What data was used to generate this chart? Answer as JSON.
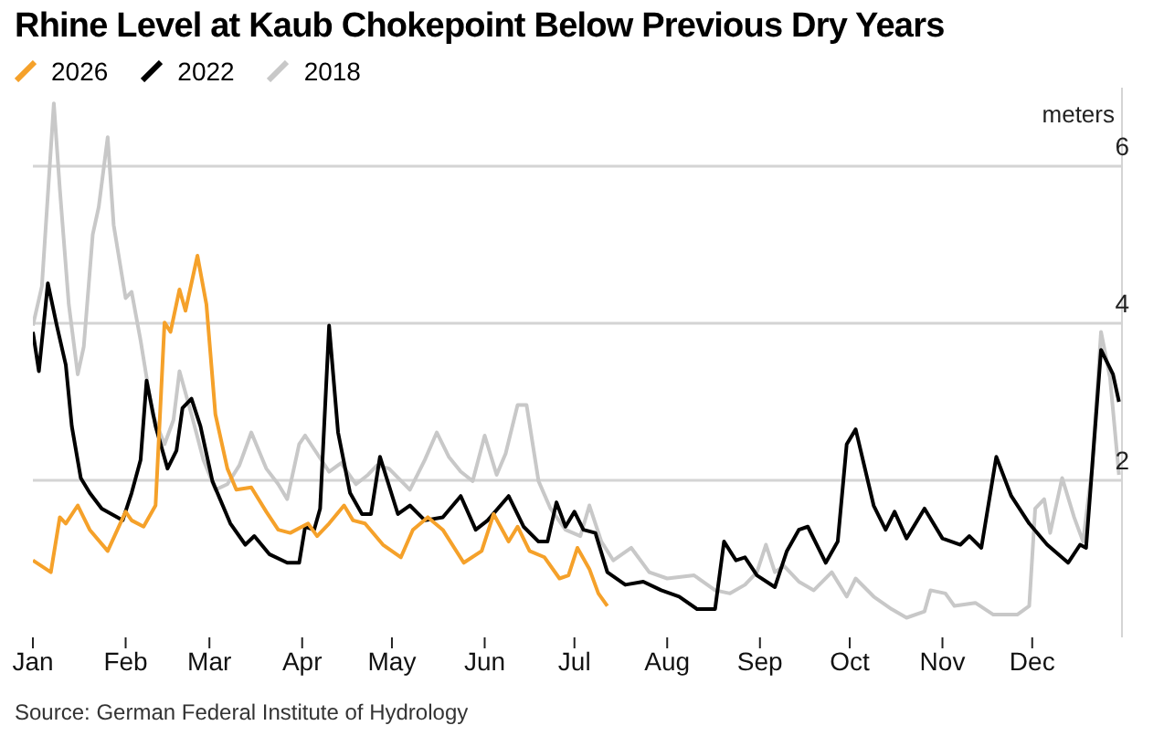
{
  "chart_data": {
    "type": "line",
    "title": "Rhine Level at Kaub Chokepoint Below Previous Dry Years",
    "ylabel": "meters",
    "annotations": [
      "Source: German Federal Institute of Hydrology"
    ],
    "xlim": [
      "--01-01",
      "--12-31"
    ],
    "xticks": [
      {
        "value": "--01-01",
        "label": "Jan"
      },
      {
        "value": "--02-01",
        "label": "Feb"
      },
      {
        "value": "--03-01",
        "label": "Mar"
      },
      {
        "value": "--04-01",
        "label": "Apr"
      },
      {
        "value": "--05-01",
        "label": "May"
      },
      {
        "value": "--06-01",
        "label": "Jun"
      },
      {
        "value": "--07-01",
        "label": "Jul"
      },
      {
        "value": "--08-01",
        "label": "Aug"
      },
      {
        "value": "--09-01",
        "label": "Sep"
      },
      {
        "value": "--10-01",
        "label": "Oct"
      },
      {
        "value": "--11-01",
        "label": "Nov"
      },
      {
        "value": "--12-01",
        "label": "Dec"
      }
    ],
    "ylim": [
      0,
      7
    ],
    "yticks": [
      2,
      4,
      6
    ],
    "grid": "y",
    "legend": "top left",
    "marker": "none",
    "line_style": "solid",
    "series": [
      {
        "name": "2018",
        "color": "#c8c8c8",
        "x": [
          "--01-01",
          "--01-04",
          "--01-08",
          "--01-10",
          "--01-13",
          "--01-16",
          "--01-18",
          "--01-21",
          "--01-23",
          "--01-26",
          "--01-28",
          "--02-01",
          "--02-03",
          "--02-06",
          "--02-10",
          "--02-14",
          "--02-17",
          "--02-19",
          "--02-23",
          "--02-27",
          "--03-03",
          "--03-07",
          "--03-11",
          "--03-15",
          "--03-20",
          "--03-24",
          "--03-27",
          "--03-31",
          "--04-02",
          "--04-06",
          "--04-10",
          "--04-14",
          "--04-19",
          "--04-23",
          "--04-26",
          "--04-30",
          "--05-07",
          "--05-12",
          "--05-16",
          "--05-20",
          "--05-24",
          "--05-28",
          "--06-01",
          "--06-05",
          "--06-08",
          "--06-12",
          "--06-15",
          "--06-19",
          "--06-23",
          "--06-28",
          "--07-03",
          "--07-06",
          "--07-10",
          "--07-14",
          "--07-20",
          "--07-26",
          "--08-01",
          "--08-10",
          "--08-17",
          "--08-22",
          "--08-27",
          "--08-31",
          "--09-03",
          "--09-06",
          "--09-09",
          "--09-14",
          "--09-19",
          "--09-25",
          "--09-30",
          "--10-03",
          "--10-09",
          "--10-15",
          "--10-20",
          "--10-26",
          "--10-28",
          "--11-02",
          "--11-05",
          "--11-12",
          "--11-18",
          "--11-26",
          "--11-30",
          "--12-02",
          "--12-05",
          "--12-07",
          "--12-11",
          "--12-15",
          "--12-18",
          "--12-21",
          "--12-24",
          "--12-27",
          "--12-30"
        ],
        "values": [
          3.97,
          4.47,
          6.8,
          5.71,
          4.24,
          3.35,
          3.7,
          5.13,
          5.48,
          6.37,
          5.25,
          4.32,
          4.4,
          3.78,
          2.84,
          2.46,
          2.77,
          3.39,
          2.84,
          2.26,
          1.88,
          1.95,
          2.19,
          2.61,
          2.15,
          1.95,
          1.76,
          2.46,
          2.57,
          2.34,
          2.11,
          2.22,
          1.95,
          2.07,
          2.19,
          2.15,
          1.88,
          2.26,
          2.61,
          2.3,
          2.11,
          1.99,
          2.57,
          2.07,
          2.34,
          2.96,
          2.96,
          1.99,
          1.64,
          1.37,
          1.29,
          1.68,
          1.22,
          0.98,
          1.14,
          0.83,
          0.75,
          0.79,
          0.6,
          0.56,
          0.67,
          0.83,
          1.18,
          0.83,
          0.91,
          0.71,
          0.6,
          0.83,
          0.52,
          0.75,
          0.52,
          0.36,
          0.25,
          0.33,
          0.6,
          0.56,
          0.4,
          0.44,
          0.29,
          0.29,
          0.4,
          1.64,
          1.76,
          1.33,
          2.03,
          1.53,
          1.22,
          2.15,
          3.89,
          3.31,
          2.07
        ]
      },
      {
        "name": "2022",
        "color": "#000000",
        "x": [
          "--01-01",
          "--01-03",
          "--01-06",
          "--01-09",
          "--01-12",
          "--01-14",
          "--01-17",
          "--01-20",
          "--01-24",
          "--01-31",
          "--02-03",
          "--02-06",
          "--02-08",
          "--02-11",
          "--02-15",
          "--02-18",
          "--02-20",
          "--02-23",
          "--02-26",
          "--03-02",
          "--03-08",
          "--03-13",
          "--03-16",
          "--03-21",
          "--03-27",
          "--03-31",
          "--04-02",
          "--04-05",
          "--04-07",
          "--04-10",
          "--04-13",
          "--04-17",
          "--04-21",
          "--04-24",
          "--04-27",
          "--05-03",
          "--05-07",
          "--05-12",
          "--05-18",
          "--05-24",
          "--05-29",
          "--06-02",
          "--06-09",
          "--06-14",
          "--06-19",
          "--06-22",
          "--06-25",
          "--06-28",
          "--07-01",
          "--07-04",
          "--07-08",
          "--07-12",
          "--07-18",
          "--07-24",
          "--07-30",
          "--08-05",
          "--08-11",
          "--08-17",
          "--08-20",
          "--08-24",
          "--08-27",
          "--08-31",
          "--09-06",
          "--09-10",
          "--09-14",
          "--09-17",
          "--09-23",
          "--09-27",
          "--09-30",
          "--10-03",
          "--10-09",
          "--10-13",
          "--10-16",
          "--10-20",
          "--10-26",
          "--11-01",
          "--11-07",
          "--11-10",
          "--11-14",
          "--11-19",
          "--11-24",
          "--11-30",
          "--12-06",
          "--12-13",
          "--12-17",
          "--12-19",
          "--12-24",
          "--12-28",
          "--12-30"
        ],
        "values": [
          3.89,
          3.39,
          4.51,
          3.97,
          3.47,
          2.69,
          2.03,
          1.84,
          1.64,
          1.49,
          1.84,
          2.26,
          3.27,
          2.69,
          2.15,
          2.38,
          2.92,
          3.04,
          2.69,
          1.99,
          1.45,
          1.18,
          1.29,
          1.06,
          0.95,
          0.95,
          1.41,
          1.37,
          1.64,
          3.97,
          2.61,
          1.84,
          1.57,
          1.57,
          2.3,
          1.57,
          1.68,
          1.49,
          1.53,
          1.8,
          1.37,
          1.49,
          1.8,
          1.41,
          1.22,
          1.22,
          1.72,
          1.41,
          1.6,
          1.37,
          1.33,
          0.83,
          0.67,
          0.71,
          0.6,
          0.52,
          0.36,
          0.36,
          1.22,
          0.98,
          1.02,
          0.79,
          0.64,
          1.1,
          1.37,
          1.41,
          0.95,
          1.22,
          2.46,
          2.65,
          1.68,
          1.37,
          1.6,
          1.26,
          1.64,
          1.26,
          1.18,
          1.29,
          1.14,
          2.3,
          1.8,
          1.45,
          1.18,
          0.95,
          1.18,
          1.14,
          3.66,
          3.35,
          3.0
        ]
      },
      {
        "name": "2026",
        "color": "#f5a12a",
        "x": [
          "--01-01",
          "--01-07",
          "--01-10",
          "--01-12",
          "--01-16",
          "--01-20",
          "--01-26",
          "--02-01",
          "--02-03",
          "--02-07",
          "--02-11",
          "--02-14",
          "--02-16",
          "--02-19",
          "--02-21",
          "--02-25",
          "--02-28",
          "--03-03",
          "--03-07",
          "--03-10",
          "--03-15",
          "--03-20",
          "--03-24",
          "--03-28",
          "--04-03",
          "--04-06",
          "--04-10",
          "--04-15",
          "--04-18",
          "--04-22",
          "--04-28",
          "--05-04",
          "--05-08",
          "--05-13",
          "--05-18",
          "--05-25",
          "--05-31",
          "--06-04",
          "--06-09",
          "--06-12",
          "--06-16",
          "--06-21",
          "--06-26",
          "--06-29",
          "--07-02",
          "--07-06",
          "--07-09",
          "--07-12"
        ],
        "values": [
          0.98,
          0.83,
          1.53,
          1.45,
          1.68,
          1.37,
          1.1,
          1.6,
          1.49,
          1.41,
          1.68,
          4.01,
          3.89,
          4.43,
          4.16,
          4.86,
          4.24,
          2.84,
          2.15,
          1.88,
          1.91,
          1.6,
          1.37,
          1.33,
          1.45,
          1.29,
          1.45,
          1.68,
          1.49,
          1.45,
          1.18,
          1.02,
          1.37,
          1.53,
          1.37,
          0.95,
          1.1,
          1.57,
          1.22,
          1.41,
          1.1,
          1.02,
          0.75,
          0.79,
          1.14,
          0.87,
          0.56,
          0.4
        ]
      }
    ]
  }
}
